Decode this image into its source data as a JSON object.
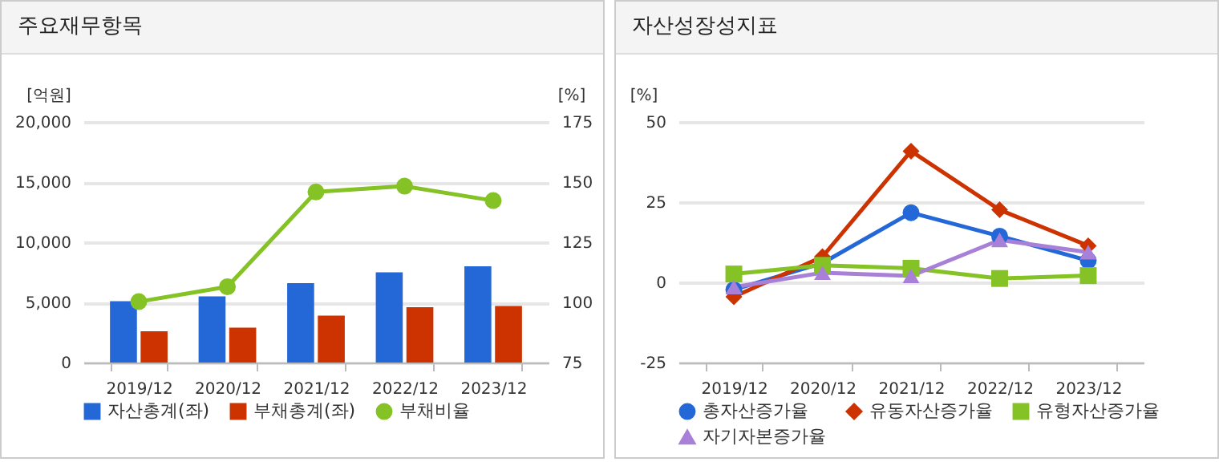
{
  "chart_data": [
    {
      "type": "bar",
      "title": "주요재무항목",
      "categories": [
        "2019/12",
        "2020/12",
        "2021/12",
        "2022/12",
        "2023/12"
      ],
      "ylabel": "[억원]",
      "y2label": "[%]",
      "ylim": [
        0,
        20000
      ],
      "yticks": [
        0,
        {
          "value": 5000,
          "label": "5,000"
        },
        {
          "value": 10000,
          "label": "10,000"
        },
        {
          "value": 15000,
          "label": "15,000"
        },
        {
          "value": 20000,
          "label": "20,000"
        }
      ],
      "y2lim": [
        75,
        175
      ],
      "y2ticks": [
        75,
        100,
        125,
        150,
        175
      ],
      "grid": "y",
      "legend": "bottom",
      "series": [
        {
          "name": "자산총계(좌)",
          "color": "#2468d8",
          "values": [
            5100,
            5500,
            6600,
            7500,
            8000
          ]
        },
        {
          "name": "부채총계(좌)",
          "color": "#cc3300",
          "values": [
            2600,
            2900,
            3900,
            4600,
            4700
          ]
        },
        {
          "name": "부채비율",
          "type": "line",
          "axis": "y2",
          "marker": "circle",
          "color": "#84c225",
          "values": [
            100.3,
            106.5,
            145.9,
            148.3,
            142.3
          ]
        }
      ]
    },
    {
      "type": "line",
      "title": "자산성장성지표",
      "categories": [
        "2019/12",
        "2020/12",
        "2021/12",
        "2022/12",
        "2023/12"
      ],
      "ylabel": "[%]",
      "ylim": [
        -25,
        50
      ],
      "yticks": [
        -25,
        0,
        25,
        50
      ],
      "grid": "y",
      "legend": "bottom",
      "series": [
        {
          "name": "총자산증가율",
          "marker": "circle",
          "color": "#2468d8",
          "values": [
            -2.3,
            6,
            21.7,
            14.4,
            6.8
          ]
        },
        {
          "name": "유동자산증가율",
          "marker": "diamond",
          "color": "#cc3300",
          "values": [
            -4.5,
            8,
            40.9,
            22.6,
            11.4
          ]
        },
        {
          "name": "유형자산증가율",
          "marker": "square",
          "color": "#84c225",
          "values": [
            2.6,
            5.3,
            4.4,
            1.2,
            2.1
          ]
        },
        {
          "name": "자기자본증가율",
          "marker": "triangle",
          "color": "#a880d8",
          "values": [
            -1.5,
            3,
            2,
            13.2,
            9.4
          ]
        }
      ]
    }
  ]
}
